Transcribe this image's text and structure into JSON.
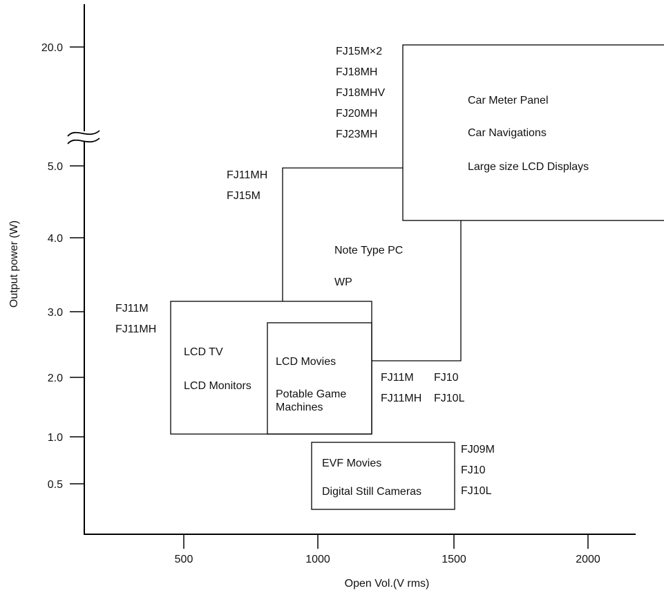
{
  "axes": {
    "xlabel": "Open Vol.(V rms)",
    "ylabel": "Output power (W)",
    "x_ticks": [
      "500",
      "1000",
      "1500",
      "2000"
    ],
    "y_ticks": [
      "0.5",
      "1.0",
      "2.0",
      "3.0",
      "4.0",
      "5.0",
      "20.0"
    ]
  },
  "regions": {
    "large_lcd": {
      "models": [
        "FJ15M×2",
        "FJ18MH",
        "FJ18MHV",
        "FJ20MH",
        "FJ23MH"
      ],
      "applications": [
        "Car Meter Panel",
        "Car Navigations",
        "Large size LCD Displays"
      ]
    },
    "note_pc": {
      "models": [
        "FJ11MH",
        "FJ15M"
      ],
      "applications": [
        "Note Type PC",
        "WP"
      ]
    },
    "lcd_tv": {
      "models": [
        "FJ11M",
        "FJ11MH"
      ],
      "applications": [
        "LCD TV",
        "LCD Monitors"
      ]
    },
    "lcd_movies": {
      "models_col1": [
        "FJ11M",
        "FJ11MH"
      ],
      "models_col2": [
        "FJ10",
        "FJ10L"
      ],
      "applications": [
        "LCD Movies",
        "Potable Game",
        "Machines"
      ]
    },
    "evf": {
      "models": [
        "FJ09M",
        "FJ10",
        "FJ10L"
      ],
      "applications": [
        "EVF Movies",
        "Digital Still Cameras"
      ]
    }
  }
}
